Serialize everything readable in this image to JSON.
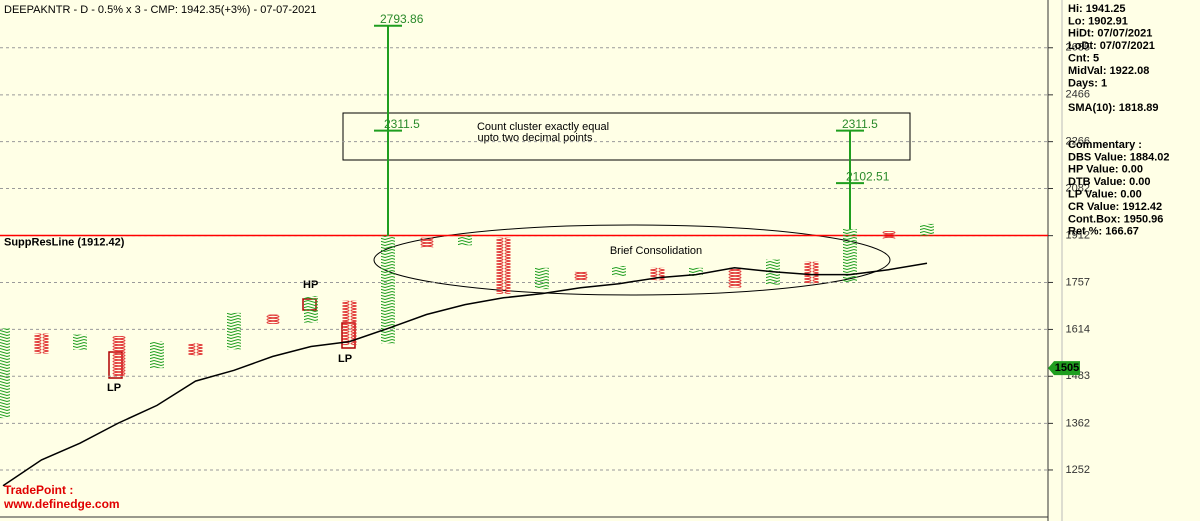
{
  "chart_data": {
    "type": "point_figure",
    "title": "DEEPAKNTR - D - 0.5% x 3 - CMP: 1942.35(+3%) - 07-07-2021",
    "log_scale": true,
    "grid": true,
    "ylim": [
      2927,
      1150
    ],
    "yticks": [
      2685,
      2466,
      2266,
      2082,
      1912,
      1757,
      1614,
      1483,
      1362,
      1252
    ],
    "x_color": "#1f9e1f",
    "o_color": "#e03030",
    "sma_color": "#000000",
    "columns": [
      {
        "kind": "X",
        "high": 1617,
        "low": 1375,
        "sma": 1217
      },
      {
        "kind": "O",
        "high": 1602,
        "low": 1545,
        "sma": 1275
      },
      {
        "kind": "X",
        "high": 1599,
        "low": 1556,
        "sma": 1314
      },
      {
        "kind": "O",
        "high": 1595,
        "low": 1483,
        "sma": 1363
      },
      {
        "kind": "X",
        "high": 1579,
        "low": 1505,
        "sma": 1407
      },
      {
        "kind": "O",
        "high": 1574,
        "low": 1540,
        "sma": 1470
      },
      {
        "kind": "X",
        "high": 1663,
        "low": 1557,
        "sma": 1499
      },
      {
        "kind": "O",
        "high": 1658,
        "low": 1630,
        "sma": 1537
      },
      {
        "kind": "X",
        "high": 1714,
        "low": 1634,
        "sma": 1565
      },
      {
        "kind": "O",
        "high": 1700,
        "low": 1569,
        "sma": 1579
      },
      {
        "kind": "X",
        "high": 1912,
        "low": 1574,
        "sma": 1617,
        "targets": [
          2793.86,
          2311.5
        ]
      },
      {
        "kind": "O",
        "high": 1905,
        "low": 1872,
        "sma": 1658
      },
      {
        "kind": "X",
        "high": 1912,
        "low": 1879,
        "sma": 1688
      },
      {
        "kind": "O",
        "high": 1905,
        "low": 1721,
        "sma": 1709
      },
      {
        "kind": "X",
        "high": 1804,
        "low": 1736,
        "sma": 1722
      },
      {
        "kind": "O",
        "high": 1791,
        "low": 1764,
        "sma": 1740
      },
      {
        "kind": "X",
        "high": 1810,
        "low": 1777,
        "sma": 1753
      },
      {
        "kind": "O",
        "high": 1804,
        "low": 1764,
        "sma": 1772
      },
      {
        "kind": "X",
        "high": 1804,
        "low": 1777,
        "sma": 1782
      },
      {
        "kind": "O",
        "high": 1804,
        "low": 1741,
        "sma": 1804
      },
      {
        "kind": "X",
        "high": 1831,
        "low": 1750,
        "sma": 1791
      },
      {
        "kind": "O",
        "high": 1824,
        "low": 1754,
        "sma": 1782
      },
      {
        "kind": "X",
        "high": 1935,
        "low": 1757,
        "sma": 1782,
        "targets": [
          2311.5,
          2102.51
        ]
      },
      {
        "kind": "O",
        "high": 1928,
        "low": 1902,
        "sma": 1798
      },
      {
        "kind": "X",
        "high": 1953,
        "low": 1912,
        "sma": 1819
      }
    ],
    "supp_res": {
      "label": "SuppResLine (1912.42)",
      "value": 1912.42,
      "color": "#ff0000"
    },
    "price_tag": {
      "value": 1505,
      "color": "#1f9e1f"
    },
    "annotations": {
      "box_line1": "Count cluster exactly equal",
      "box_line2": "upto two decimal points",
      "ellipse": "Brief Consolidation",
      "hp": "HP",
      "lp1": "LP",
      "lp2": "LP"
    },
    "info_top": [
      "Hi: 1941.25",
      "Lo: 1902.91",
      "HiDt: 07/07/2021",
      "LoDt: 07/07/2021",
      "Cnt: 5",
      "MidVal: 1922.08",
      "Days: 1"
    ],
    "sma_text": "SMA(10): 1818.89",
    "commentary": [
      "Commentary :",
      "DBS Value:  1884.02",
      "HP Value: 0.00",
      "DTB Value: 0.00",
      "LP Value: 0.00",
      "CR Value: 1912.42",
      "Cont.Box: 1950.96",
      "Ret %: 166.67"
    ],
    "footer": [
      "TradePoint :",
      "www.definedge.com"
    ]
  }
}
